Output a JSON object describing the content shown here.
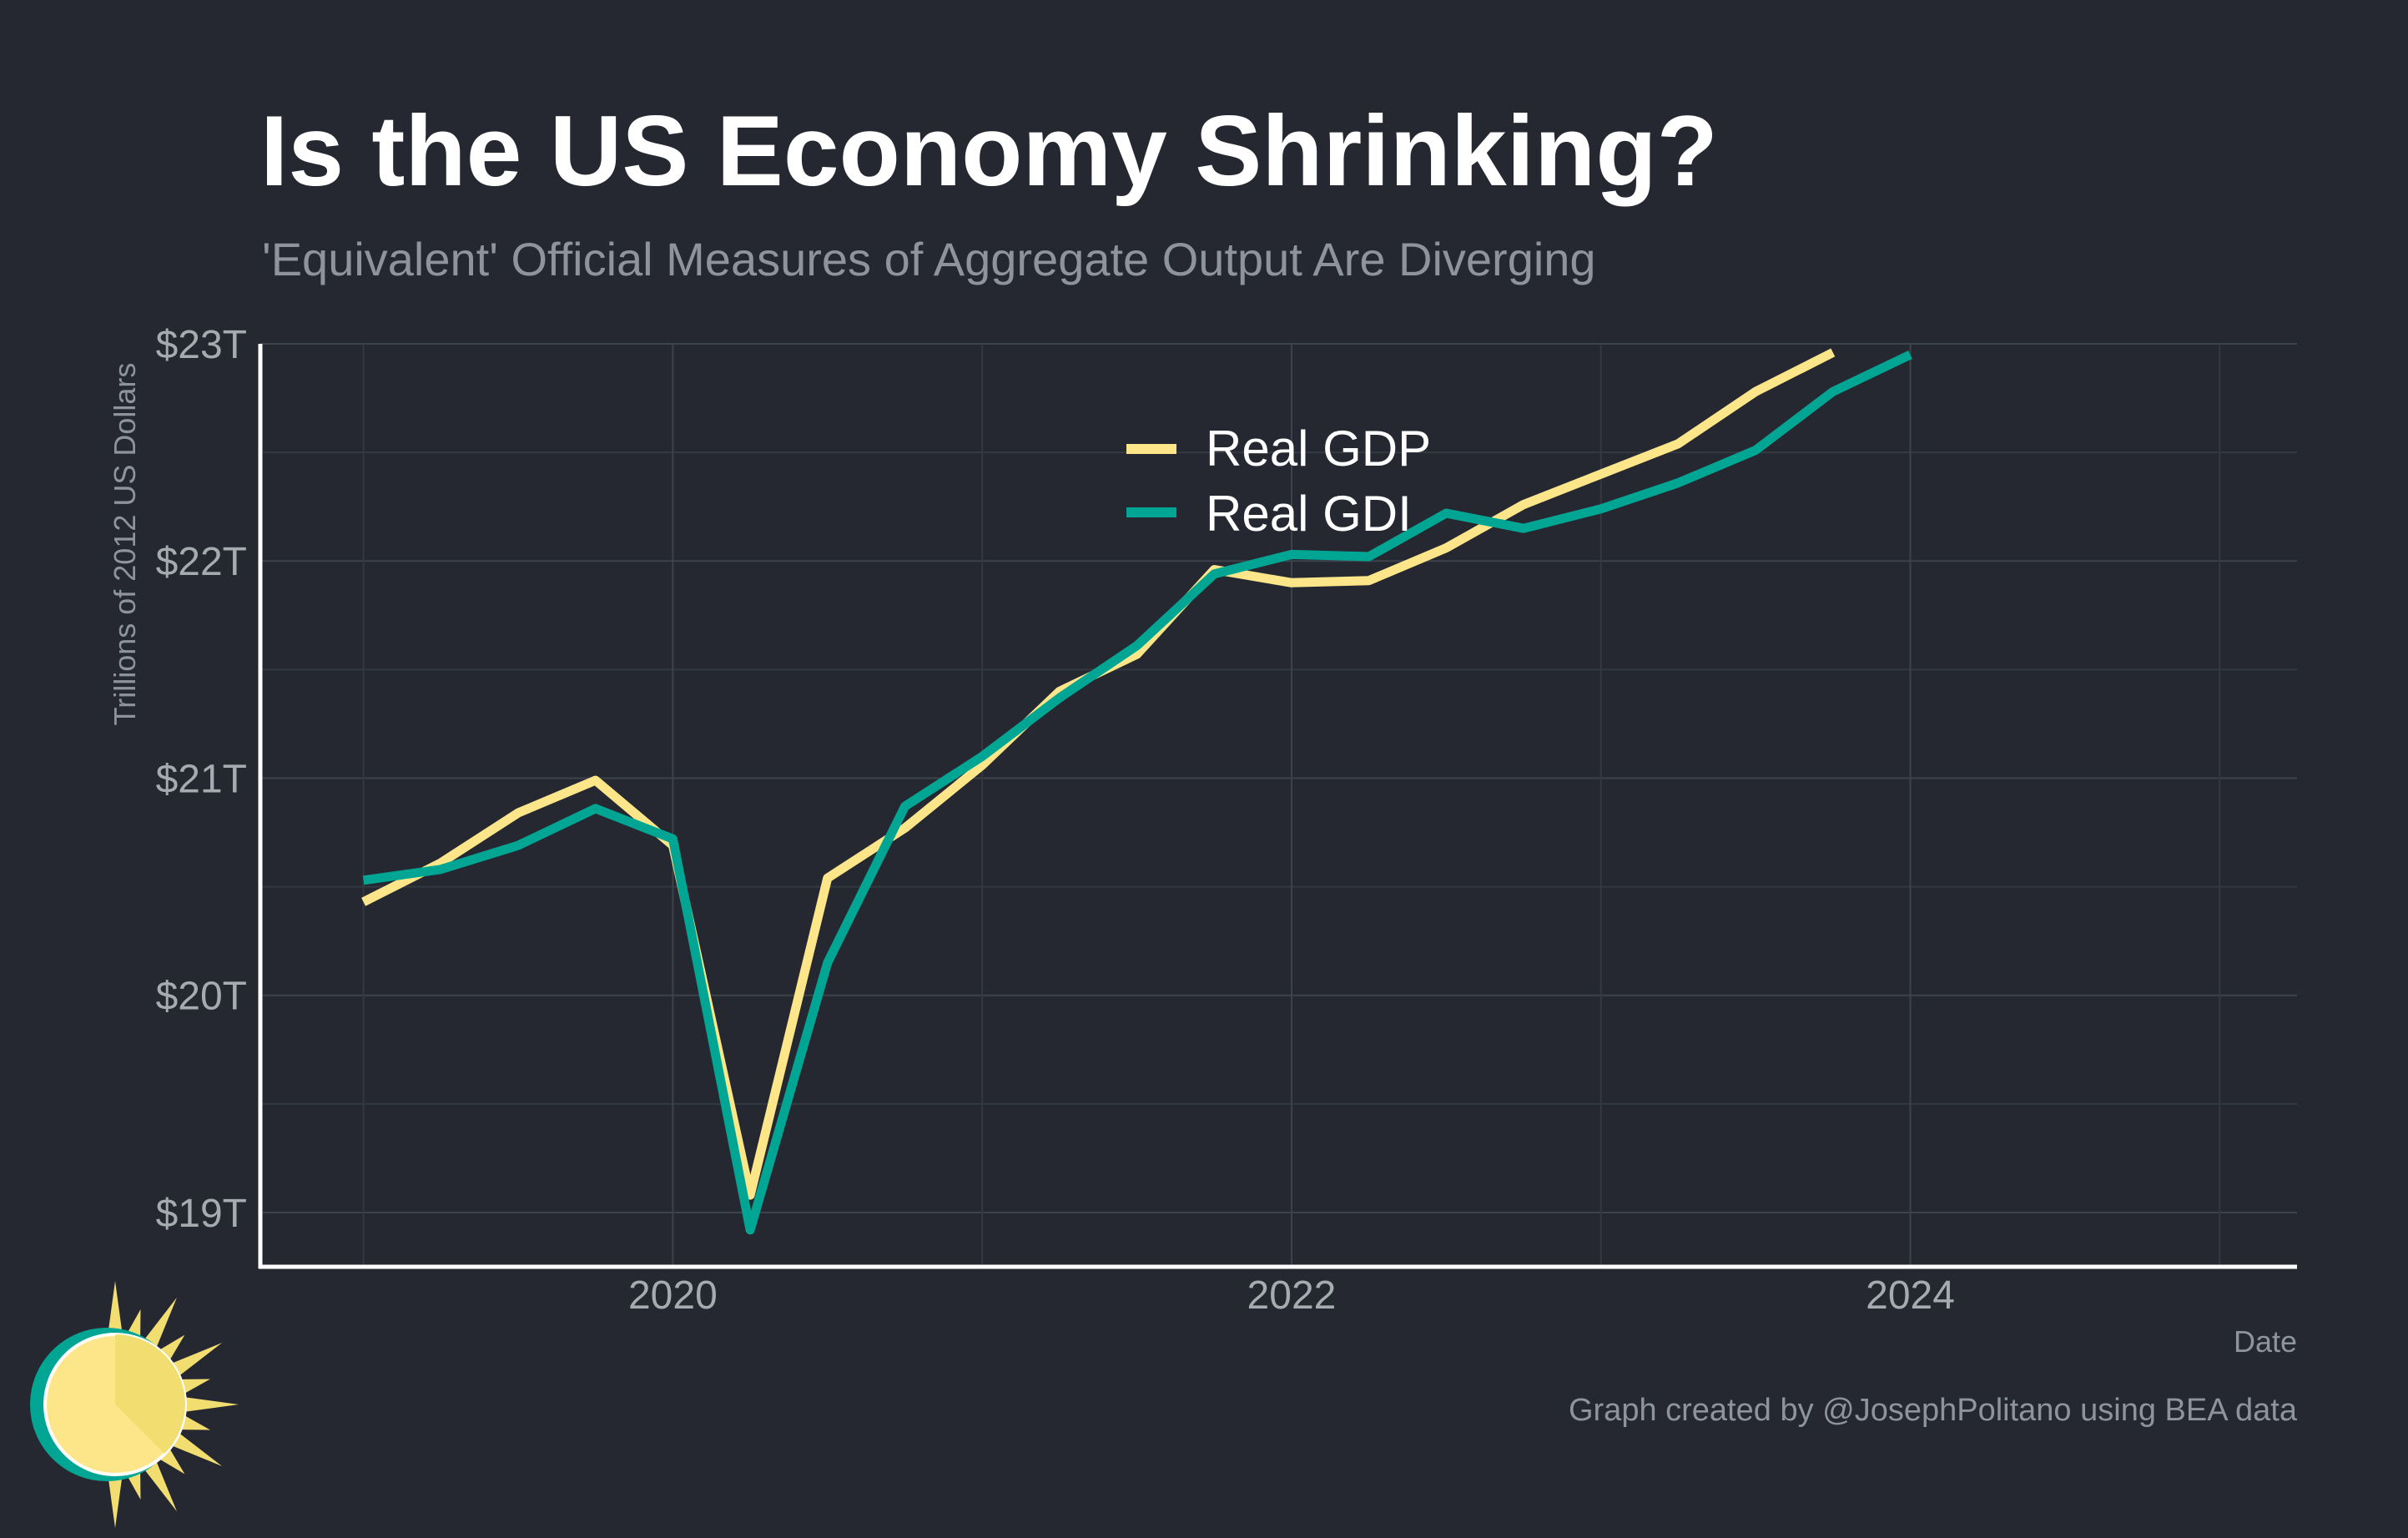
{
  "page": {
    "background": "#252830"
  },
  "chart_data": {
    "type": "line",
    "title": "Is the US Economy Shrinking?",
    "subtitle": "'Equivalent' Official Measures of Aggregate Output Are Diverging",
    "xlabel": "Date",
    "ylabel": "Trillions of 2012 US Dollars",
    "caption": "Graph created by @JosephPolitano using BEA data",
    "xlim": [
      "2018-09",
      "2025-04"
    ],
    "ylim": [
      18.75,
      23.0
    ],
    "x_ticks": [
      {
        "value": 2020,
        "label": "2020"
      },
      {
        "value": 2022,
        "label": "2022"
      },
      {
        "value": 2024,
        "label": "2024"
      }
    ],
    "y_ticks": [
      {
        "value": 19,
        "label": "$19T"
      },
      {
        "value": 20,
        "label": "$20T"
      },
      {
        "value": 21,
        "label": "$21T"
      },
      {
        "value": 22,
        "label": "$22T"
      },
      {
        "value": 23,
        "label": "$23T"
      }
    ],
    "grid": true,
    "legend_position": "top-center",
    "x": [
      "2019-01",
      "2019-04",
      "2019-07",
      "2019-10",
      "2020-01",
      "2020-04",
      "2020-07",
      "2020-10",
      "2021-01",
      "2021-04",
      "2021-07",
      "2021-10",
      "2022-01",
      "2022-04",
      "2022-07",
      "2022-10",
      "2023-01",
      "2023-04",
      "2023-07",
      "2023-10",
      "2024-01"
    ],
    "series": [
      {
        "name": "Real GDP",
        "color": "#fde68a",
        "values": [
          20.43,
          20.61,
          20.84,
          20.99,
          20.69,
          19.08,
          20.54,
          20.77,
          21.06,
          21.4,
          21.57,
          21.96,
          21.9,
          21.91,
          22.06,
          22.26,
          22.4,
          22.54,
          22.78,
          22.96,
          null
        ]
      },
      {
        "name": "Real GDI",
        "color": "#00a693",
        "values": [
          20.53,
          20.58,
          20.69,
          20.86,
          20.72,
          18.92,
          20.15,
          20.87,
          21.1,
          21.37,
          21.61,
          21.94,
          22.03,
          22.02,
          22.22,
          22.15,
          22.24,
          22.36,
          22.51,
          22.78,
          22.95
        ]
      }
    ]
  },
  "logo": {
    "sun_color": "#fde68a",
    "ring_color": "#00a693"
  }
}
